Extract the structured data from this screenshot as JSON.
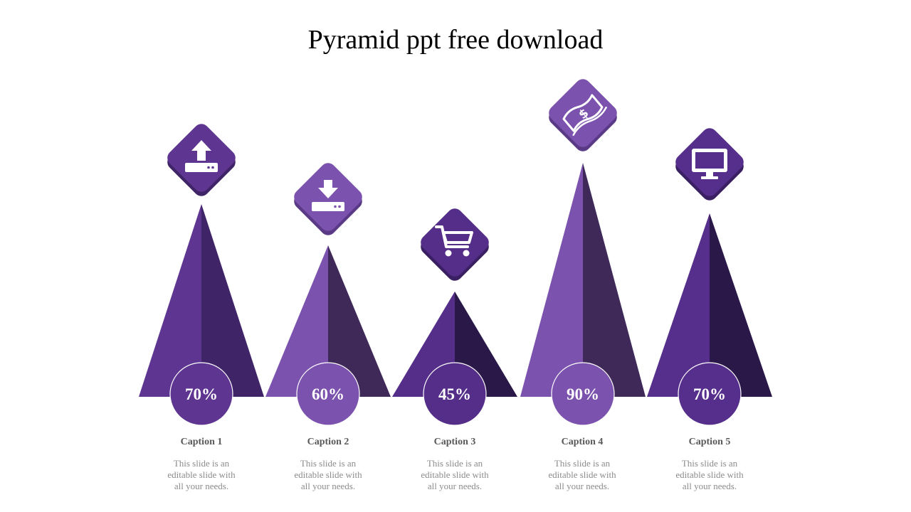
{
  "slide": {
    "title": "Pyramid ppt free download"
  },
  "items": [
    {
      "value": "70%",
      "caption": "Caption 1",
      "description": "This slide is an editable slide with all your needs.",
      "icon": "upload-icon",
      "color_light": "#5e3692",
      "color_dark": "#3f2468"
    },
    {
      "value": "60%",
      "caption": "Caption 2",
      "description": "This slide is an editable slide with all your needs.",
      "icon": "download-icon",
      "color_light": "#7b52ad",
      "color_dark": "#3e2959"
    },
    {
      "value": "45%",
      "caption": "Caption 3",
      "description": "This slide is an editable slide with all your needs.",
      "icon": "cart-icon",
      "color_light": "#552e8a",
      "color_dark": "#2a1848"
    },
    {
      "value": "90%",
      "caption": "Caption 4",
      "description": "This slide is an editable slide with all your needs.",
      "icon": "money-icon",
      "color_light": "#7b52ad",
      "color_dark": "#3e2959"
    },
    {
      "value": "70%",
      "caption": "Caption 5",
      "description": "This slide is an editable slide with all your needs.",
      "icon": "monitor-icon",
      "color_light": "#562f8c",
      "color_dark": "#2a1848"
    }
  ]
}
